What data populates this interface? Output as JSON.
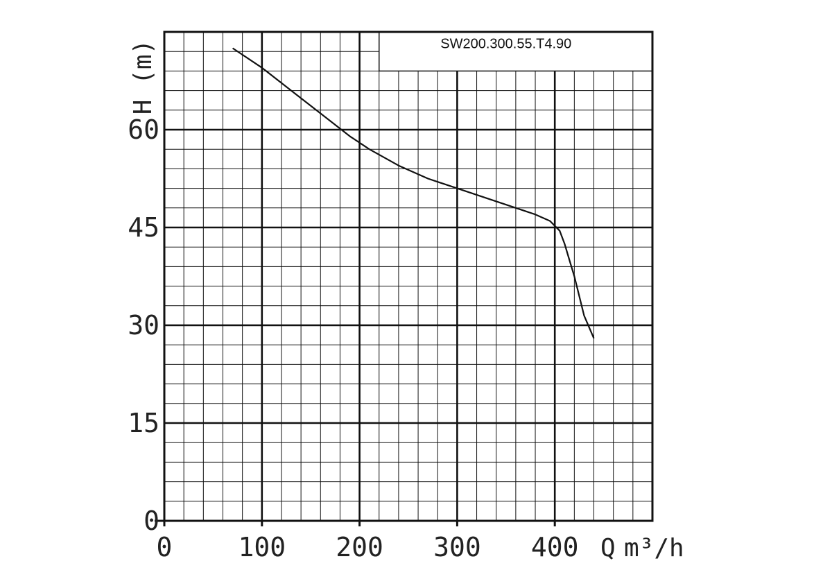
{
  "chart_data": {
    "type": "line",
    "model_label": "SW200.300.55.T4.90",
    "xlabel": {
      "symbol": "Q",
      "unit": "m³/h"
    },
    "ylabel": "H (m)",
    "xlim": [
      0,
      500
    ],
    "ylim": [
      0,
      75
    ],
    "x_ticks": [
      "0",
      "100",
      "200",
      "300",
      "400"
    ],
    "y_ticks": [
      "0",
      "15",
      "30",
      "45",
      "60"
    ],
    "grid": true,
    "colors": {
      "grid": "#111111",
      "curve": "#111111",
      "background": "#ffffff"
    },
    "series": [
      {
        "x": [
          70,
          100,
          130,
          160,
          190,
          210,
          240,
          270,
          300,
          330,
          360,
          380,
          395,
          405,
          410,
          415,
          420,
          425,
          430,
          440
        ],
        "y": [
          72.5,
          69.5,
          66,
          62.5,
          59,
          57,
          54.5,
          52.5,
          51,
          49.5,
          48,
          47,
          46,
          44.5,
          42.5,
          40,
          37.5,
          34.5,
          31.5,
          28
        ]
      }
    ]
  }
}
